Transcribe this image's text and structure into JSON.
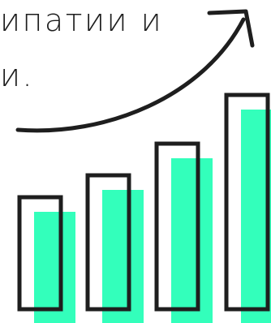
{
  "text": {
    "line1": "ипатии  и",
    "line2": "и."
  },
  "bars": {
    "relative_heights": [
      0.5,
      0.6,
      0.74,
      0.96
    ],
    "colors": {
      "fill": "#33ffbb",
      "outline": "#1e1e1e"
    }
  },
  "trend": {
    "icon": "trend-arrow-icon",
    "color": "#1e1e1e"
  }
}
